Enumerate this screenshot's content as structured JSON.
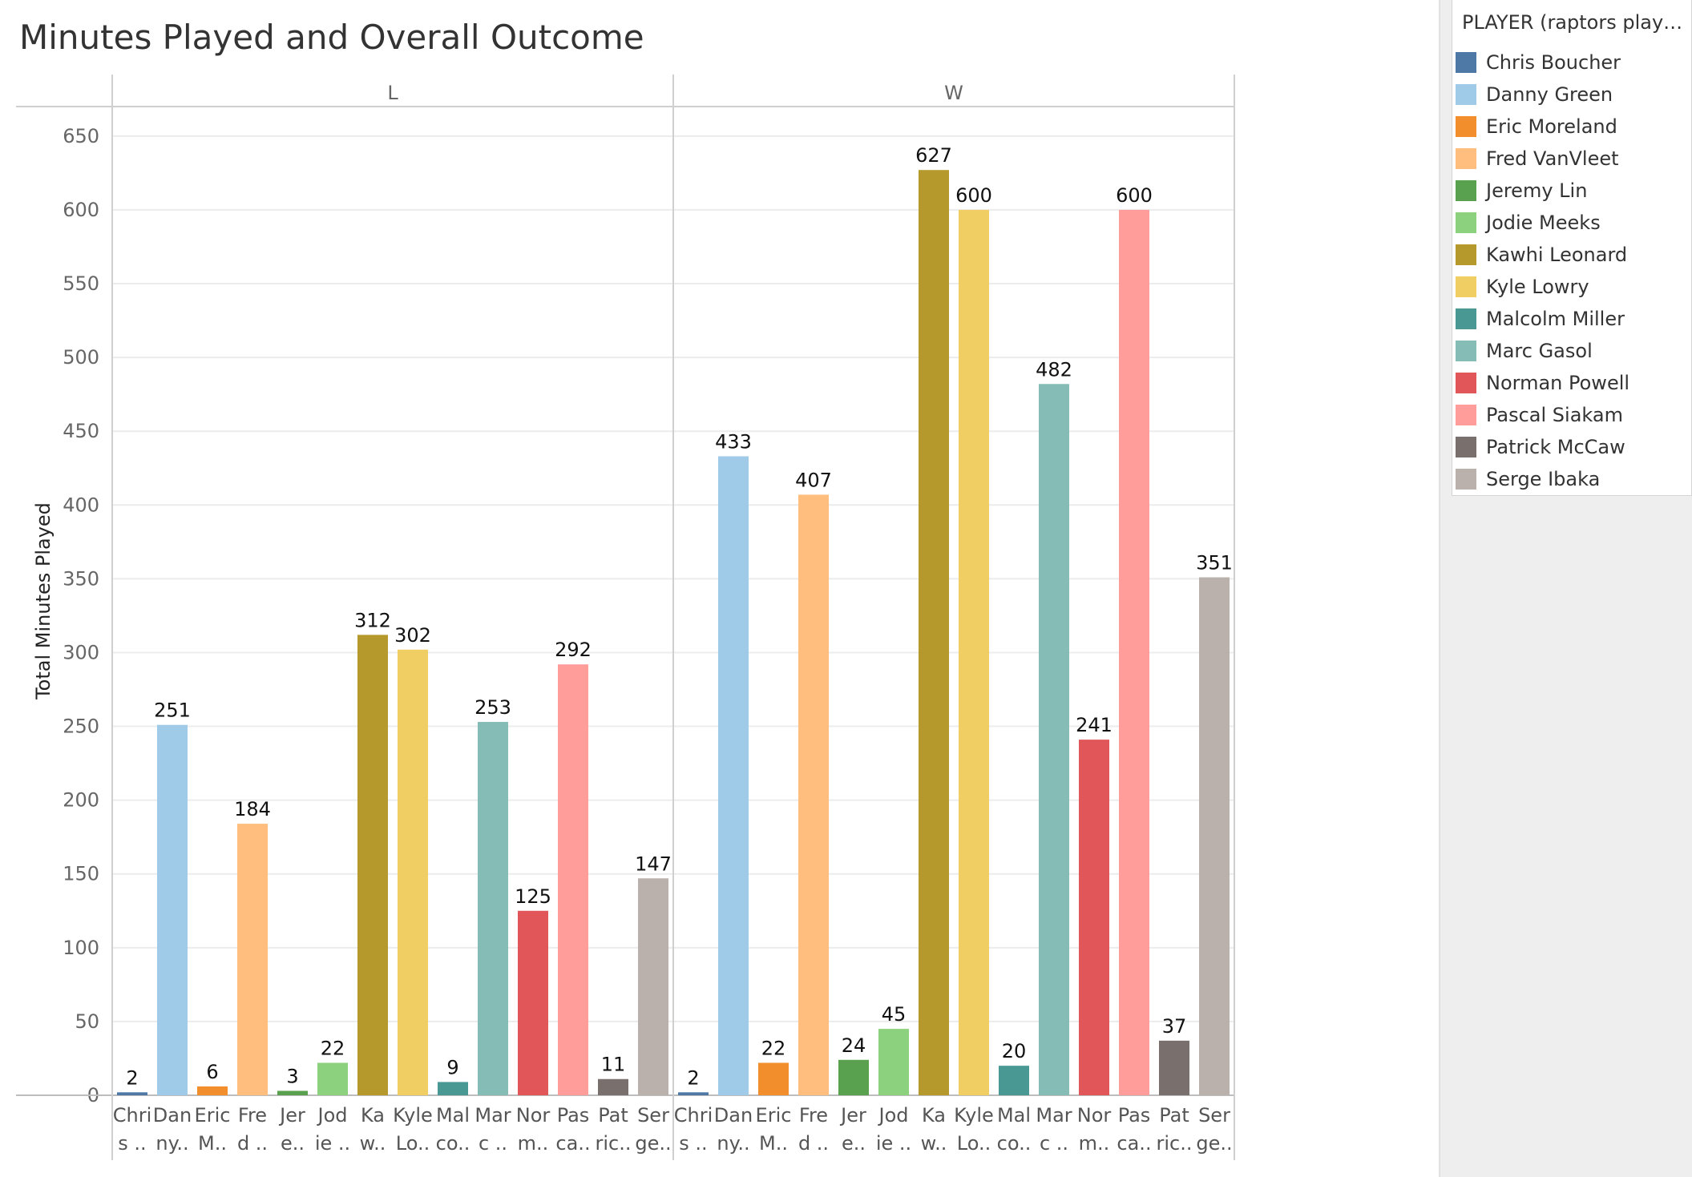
{
  "chart_title": "Minutes Played and Overall Outcome",
  "legend": {
    "title": "PLAYER (raptors player...",
    "items": [
      {
        "label": "Chris Boucher",
        "color": "#4e79a7"
      },
      {
        "label": "Danny Green",
        "color": "#a0cbe8"
      },
      {
        "label": "Eric Moreland",
        "color": "#f28e2b"
      },
      {
        "label": "Fred VanVleet",
        "color": "#ffbe7d"
      },
      {
        "label": "Jeremy Lin",
        "color": "#59a14f"
      },
      {
        "label": "Jodie Meeks",
        "color": "#8cd17d"
      },
      {
        "label": "Kawhi Leonard",
        "color": "#b6992d"
      },
      {
        "label": "Kyle Lowry",
        "color": "#f1ce63"
      },
      {
        "label": "Malcolm Miller",
        "color": "#499894"
      },
      {
        "label": "Marc Gasol",
        "color": "#86bcb6"
      },
      {
        "label": "Norman Powell",
        "color": "#e15759"
      },
      {
        "label": "Pascal Siakam",
        "color": "#ff9d9a"
      },
      {
        "label": "Patrick McCaw",
        "color": "#79706e"
      },
      {
        "label": "Serge Ibaka",
        "color": "#bab0ac"
      }
    ]
  },
  "chart_data": {
    "type": "bar",
    "title": "Minutes Played and Overall Outcome",
    "ylabel": "Total Minutes Played",
    "ylim": [
      0,
      670
    ],
    "yticks": [
      0,
      50,
      100,
      150,
      200,
      250,
      300,
      350,
      400,
      450,
      500,
      550,
      600,
      650
    ],
    "grid": true,
    "legend_position": "right",
    "category_tick_labels": [
      [
        "Chri",
        "s .."
      ],
      [
        "Dan",
        "ny.."
      ],
      [
        "Eric",
        "M.."
      ],
      [
        "Fre",
        "d .."
      ],
      [
        "Jer",
        "e.."
      ],
      [
        "Jod",
        "ie .."
      ],
      [
        "Ka",
        "w.."
      ],
      [
        "Kyle",
        "Lo.."
      ],
      [
        "Mal",
        "co.."
      ],
      [
        "Mar",
        "c .."
      ],
      [
        "Nor",
        "m.."
      ],
      [
        "Pas",
        "ca.."
      ],
      [
        "Pat",
        "ric.."
      ],
      [
        "Ser",
        "ge.."
      ]
    ],
    "categories": [
      "Chris Boucher",
      "Danny Green",
      "Eric Moreland",
      "Fred VanVleet",
      "Jeremy Lin",
      "Jodie Meeks",
      "Kawhi Leonard",
      "Kyle Lowry",
      "Malcolm Miller",
      "Marc Gasol",
      "Norman Powell",
      "Pascal Siakam",
      "Patrick McCaw",
      "Serge Ibaka"
    ],
    "panels": [
      {
        "name": "L",
        "values": [
          2,
          251,
          6,
          184,
          3,
          22,
          312,
          302,
          9,
          253,
          125,
          292,
          11,
          147
        ]
      },
      {
        "name": "W",
        "values": [
          2,
          433,
          22,
          407,
          24,
          45,
          627,
          600,
          20,
          482,
          241,
          600,
          37,
          351
        ]
      }
    ]
  }
}
